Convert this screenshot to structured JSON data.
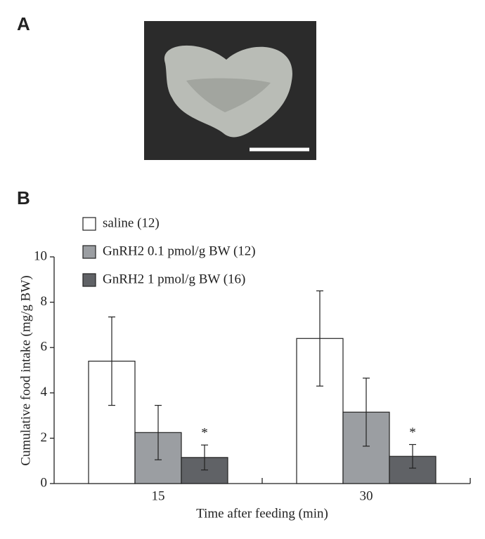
{
  "panels": {
    "a": "A",
    "b": "B"
  },
  "chart_data": {
    "type": "bar",
    "ylabel": "Cumulative food intake (mg/g BW)",
    "xlabel": "Time after feeding (min)",
    "categories": [
      "15",
      "30"
    ],
    "ylim": [
      0,
      10
    ],
    "yticks": [
      0,
      2,
      4,
      6,
      8,
      10
    ],
    "series": [
      {
        "name": "saline (12)",
        "color": "#ffffff",
        "values": [
          5.4,
          6.4
        ],
        "errors": [
          1.95,
          2.1
        ]
      },
      {
        "name": "GnRH2 0.1 pmol/g BW (12)",
        "color": "#9b9ea2",
        "values": [
          2.25,
          3.15
        ],
        "errors": [
          1.2,
          1.5
        ]
      },
      {
        "name": "GnRH2 1 pmol/g BW (16)",
        "color": "#606266",
        "values": [
          1.15,
          1.2
        ],
        "errors": [
          0.55,
          0.52
        ],
        "significance": [
          "*",
          "*"
        ]
      }
    ]
  }
}
